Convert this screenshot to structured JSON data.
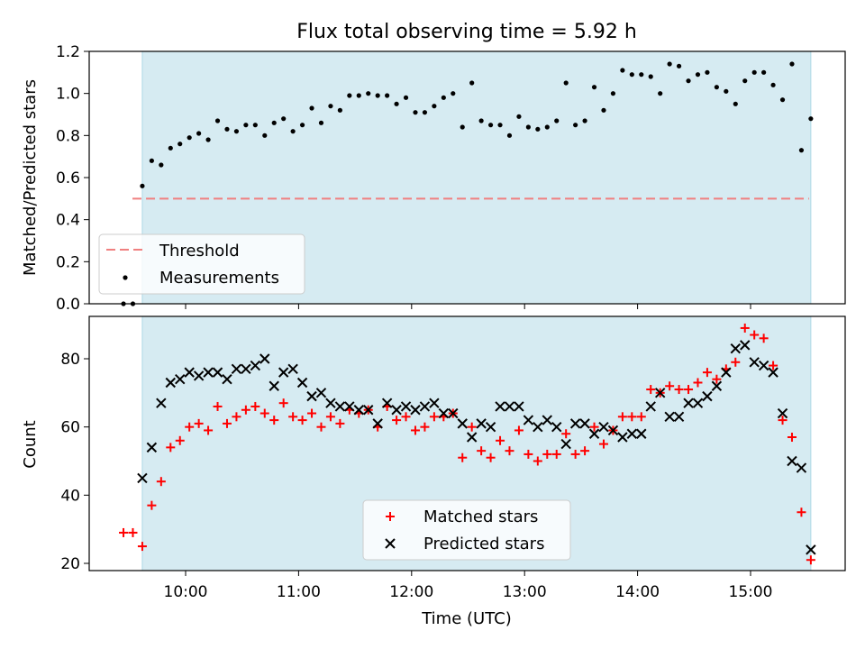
{
  "title": "Flux total observing time = 5.92 h",
  "xlabel": "Time (UTC)",
  "xtick_labels": [
    "10:00",
    "11:00",
    "12:00",
    "13:00",
    "14:00",
    "15:00"
  ],
  "colors": {
    "span": "#add8e6",
    "threshold": "#f08080",
    "measurements": "#000000",
    "matched": "#ff0000",
    "predicted": "#000000"
  },
  "chart_data": [
    {
      "type": "scatter",
      "ylabel": "Matched/Predicted stars",
      "ylim": [
        0,
        1.2
      ],
      "yticks": [
        "0.0",
        "0.2",
        "0.4",
        "0.6",
        "0.8",
        "1.0",
        "1.2"
      ],
      "shaded_span": [
        "09:37",
        "15:32"
      ],
      "threshold": {
        "name": "Threshold",
        "value": 0.5
      },
      "series": [
        {
          "name": "Measurements",
          "x": [
            "09:27",
            "09:32",
            "09:37",
            "09:42",
            "09:47",
            "09:52",
            "09:57",
            "10:02",
            "10:07",
            "10:12",
            "10:17",
            "10:22",
            "10:27",
            "10:32",
            "10:37",
            "10:42",
            "10:47",
            "10:52",
            "10:57",
            "11:02",
            "11:07",
            "11:12",
            "11:17",
            "11:22",
            "11:27",
            "11:32",
            "11:37",
            "11:42",
            "11:47",
            "11:52",
            "11:57",
            "12:02",
            "12:07",
            "12:12",
            "12:17",
            "12:22",
            "12:27",
            "12:32",
            "12:37",
            "12:42",
            "12:47",
            "12:52",
            "12:57",
            "13:02",
            "13:07",
            "13:12",
            "13:17",
            "13:22",
            "13:27",
            "13:32",
            "13:37",
            "13:42",
            "13:47",
            "13:52",
            "13:57",
            "14:02",
            "14:07",
            "14:12",
            "14:17",
            "14:22",
            "14:27",
            "14:32",
            "14:37",
            "14:42",
            "14:47",
            "14:52",
            "14:57",
            "15:02",
            "15:07",
            "15:12",
            "15:17",
            "15:22",
            "15:27",
            "15:32"
          ],
          "values": [
            0.0,
            0.0,
            0.56,
            0.68,
            0.66,
            0.74,
            0.76,
            0.79,
            0.81,
            0.78,
            0.87,
            0.83,
            0.82,
            0.85,
            0.85,
            0.8,
            0.86,
            0.88,
            0.82,
            0.85,
            0.93,
            0.86,
            0.94,
            0.92,
            0.99,
            0.99,
            1.0,
            0.99,
            0.99,
            0.95,
            0.98,
            0.91,
            0.91,
            0.94,
            0.98,
            1.0,
            0.84,
            1.05,
            0.87,
            0.85,
            0.85,
            0.8,
            0.89,
            0.84,
            0.83,
            0.84,
            0.87,
            1.05,
            0.85,
            0.87,
            1.03,
            0.92,
            1.0,
            1.11,
            1.09,
            1.09,
            1.08,
            1.0,
            1.14,
            1.13,
            1.06,
            1.09,
            1.1,
            1.03,
            1.01,
            0.95,
            1.06,
            1.1,
            1.1,
            1.04,
            0.97,
            1.14,
            0.73,
            0.88
          ]
        }
      ]
    },
    {
      "type": "scatter",
      "ylabel": "Count",
      "ylim": [
        18,
        93
      ],
      "yticks": [
        "20",
        "40",
        "60",
        "80"
      ],
      "shaded_span": [
        "09:37",
        "15:32"
      ],
      "series": [
        {
          "name": "Matched stars",
          "x": [
            "09:27",
            "09:32",
            "09:37",
            "09:42",
            "09:47",
            "09:52",
            "09:57",
            "10:02",
            "10:07",
            "10:12",
            "10:17",
            "10:22",
            "10:27",
            "10:32",
            "10:37",
            "10:42",
            "10:47",
            "10:52",
            "10:57",
            "11:02",
            "11:07",
            "11:12",
            "11:17",
            "11:22",
            "11:27",
            "11:32",
            "11:37",
            "11:42",
            "11:47",
            "11:52",
            "11:57",
            "12:02",
            "12:07",
            "12:12",
            "12:17",
            "12:22",
            "12:27",
            "12:32",
            "12:37",
            "12:42",
            "12:47",
            "12:52",
            "12:57",
            "13:02",
            "13:07",
            "13:12",
            "13:17",
            "13:22",
            "13:27",
            "13:32",
            "13:37",
            "13:42",
            "13:47",
            "13:52",
            "13:57",
            "14:02",
            "14:07",
            "14:12",
            "14:17",
            "14:22",
            "14:27",
            "14:32",
            "14:37",
            "14:42",
            "14:47",
            "14:52",
            "14:57",
            "15:02",
            "15:07",
            "15:12",
            "15:17",
            "15:22",
            "15:27",
            "15:32"
          ],
          "values": [
            29,
            29,
            25,
            37,
            44,
            54,
            56,
            60,
            61,
            59,
            66,
            61,
            63,
            65,
            66,
            64,
            62,
            67,
            63,
            62,
            64,
            60,
            63,
            61,
            65,
            64,
            65,
            60,
            66,
            62,
            63,
            59,
            60,
            63,
            63,
            64,
            51,
            60,
            53,
            51,
            56,
            53,
            59,
            52,
            50,
            52,
            52,
            58,
            52,
            53,
            60,
            55,
            59,
            63,
            63,
            63,
            71,
            70,
            72,
            71,
            71,
            73,
            76,
            74,
            77,
            79,
            89,
            87,
            86,
            78,
            62,
            57,
            35,
            21
          ]
        },
        {
          "name": "Predicted stars",
          "x": [
            "09:37",
            "09:42",
            "09:47",
            "09:52",
            "09:57",
            "10:02",
            "10:07",
            "10:12",
            "10:17",
            "10:22",
            "10:27",
            "10:32",
            "10:37",
            "10:42",
            "10:47",
            "10:52",
            "10:57",
            "11:02",
            "11:07",
            "11:12",
            "11:17",
            "11:22",
            "11:27",
            "11:32",
            "11:37",
            "11:42",
            "11:47",
            "11:52",
            "11:57",
            "12:02",
            "12:07",
            "12:12",
            "12:17",
            "12:22",
            "12:27",
            "12:32",
            "12:37",
            "12:42",
            "12:47",
            "12:52",
            "12:57",
            "13:02",
            "13:07",
            "13:12",
            "13:17",
            "13:22",
            "13:27",
            "13:32",
            "13:37",
            "13:42",
            "13:47",
            "13:52",
            "13:57",
            "14:02",
            "14:07",
            "14:12",
            "14:17",
            "14:22",
            "14:27",
            "14:32",
            "14:37",
            "14:42",
            "14:47",
            "14:52",
            "14:57",
            "15:02",
            "15:07",
            "15:12",
            "15:17",
            "15:22",
            "15:27",
            "15:32"
          ],
          "values": [
            45,
            54,
            67,
            73,
            74,
            76,
            75,
            76,
            76,
            74,
            77,
            77,
            78,
            80,
            72,
            76,
            77,
            73,
            69,
            70,
            67,
            66,
            66,
            65,
            65,
            61,
            67,
            65,
            66,
            65,
            66,
            67,
            64,
            64,
            61,
            57,
            61,
            60,
            66,
            66,
            66,
            62,
            60,
            62,
            60,
            55,
            61,
            61,
            58,
            60,
            59,
            57,
            58,
            58,
            66,
            70,
            63,
            63,
            67,
            67,
            69,
            72,
            76,
            83,
            84,
            79,
            78,
            76,
            64,
            50,
            48,
            24
          ]
        }
      ]
    }
  ]
}
